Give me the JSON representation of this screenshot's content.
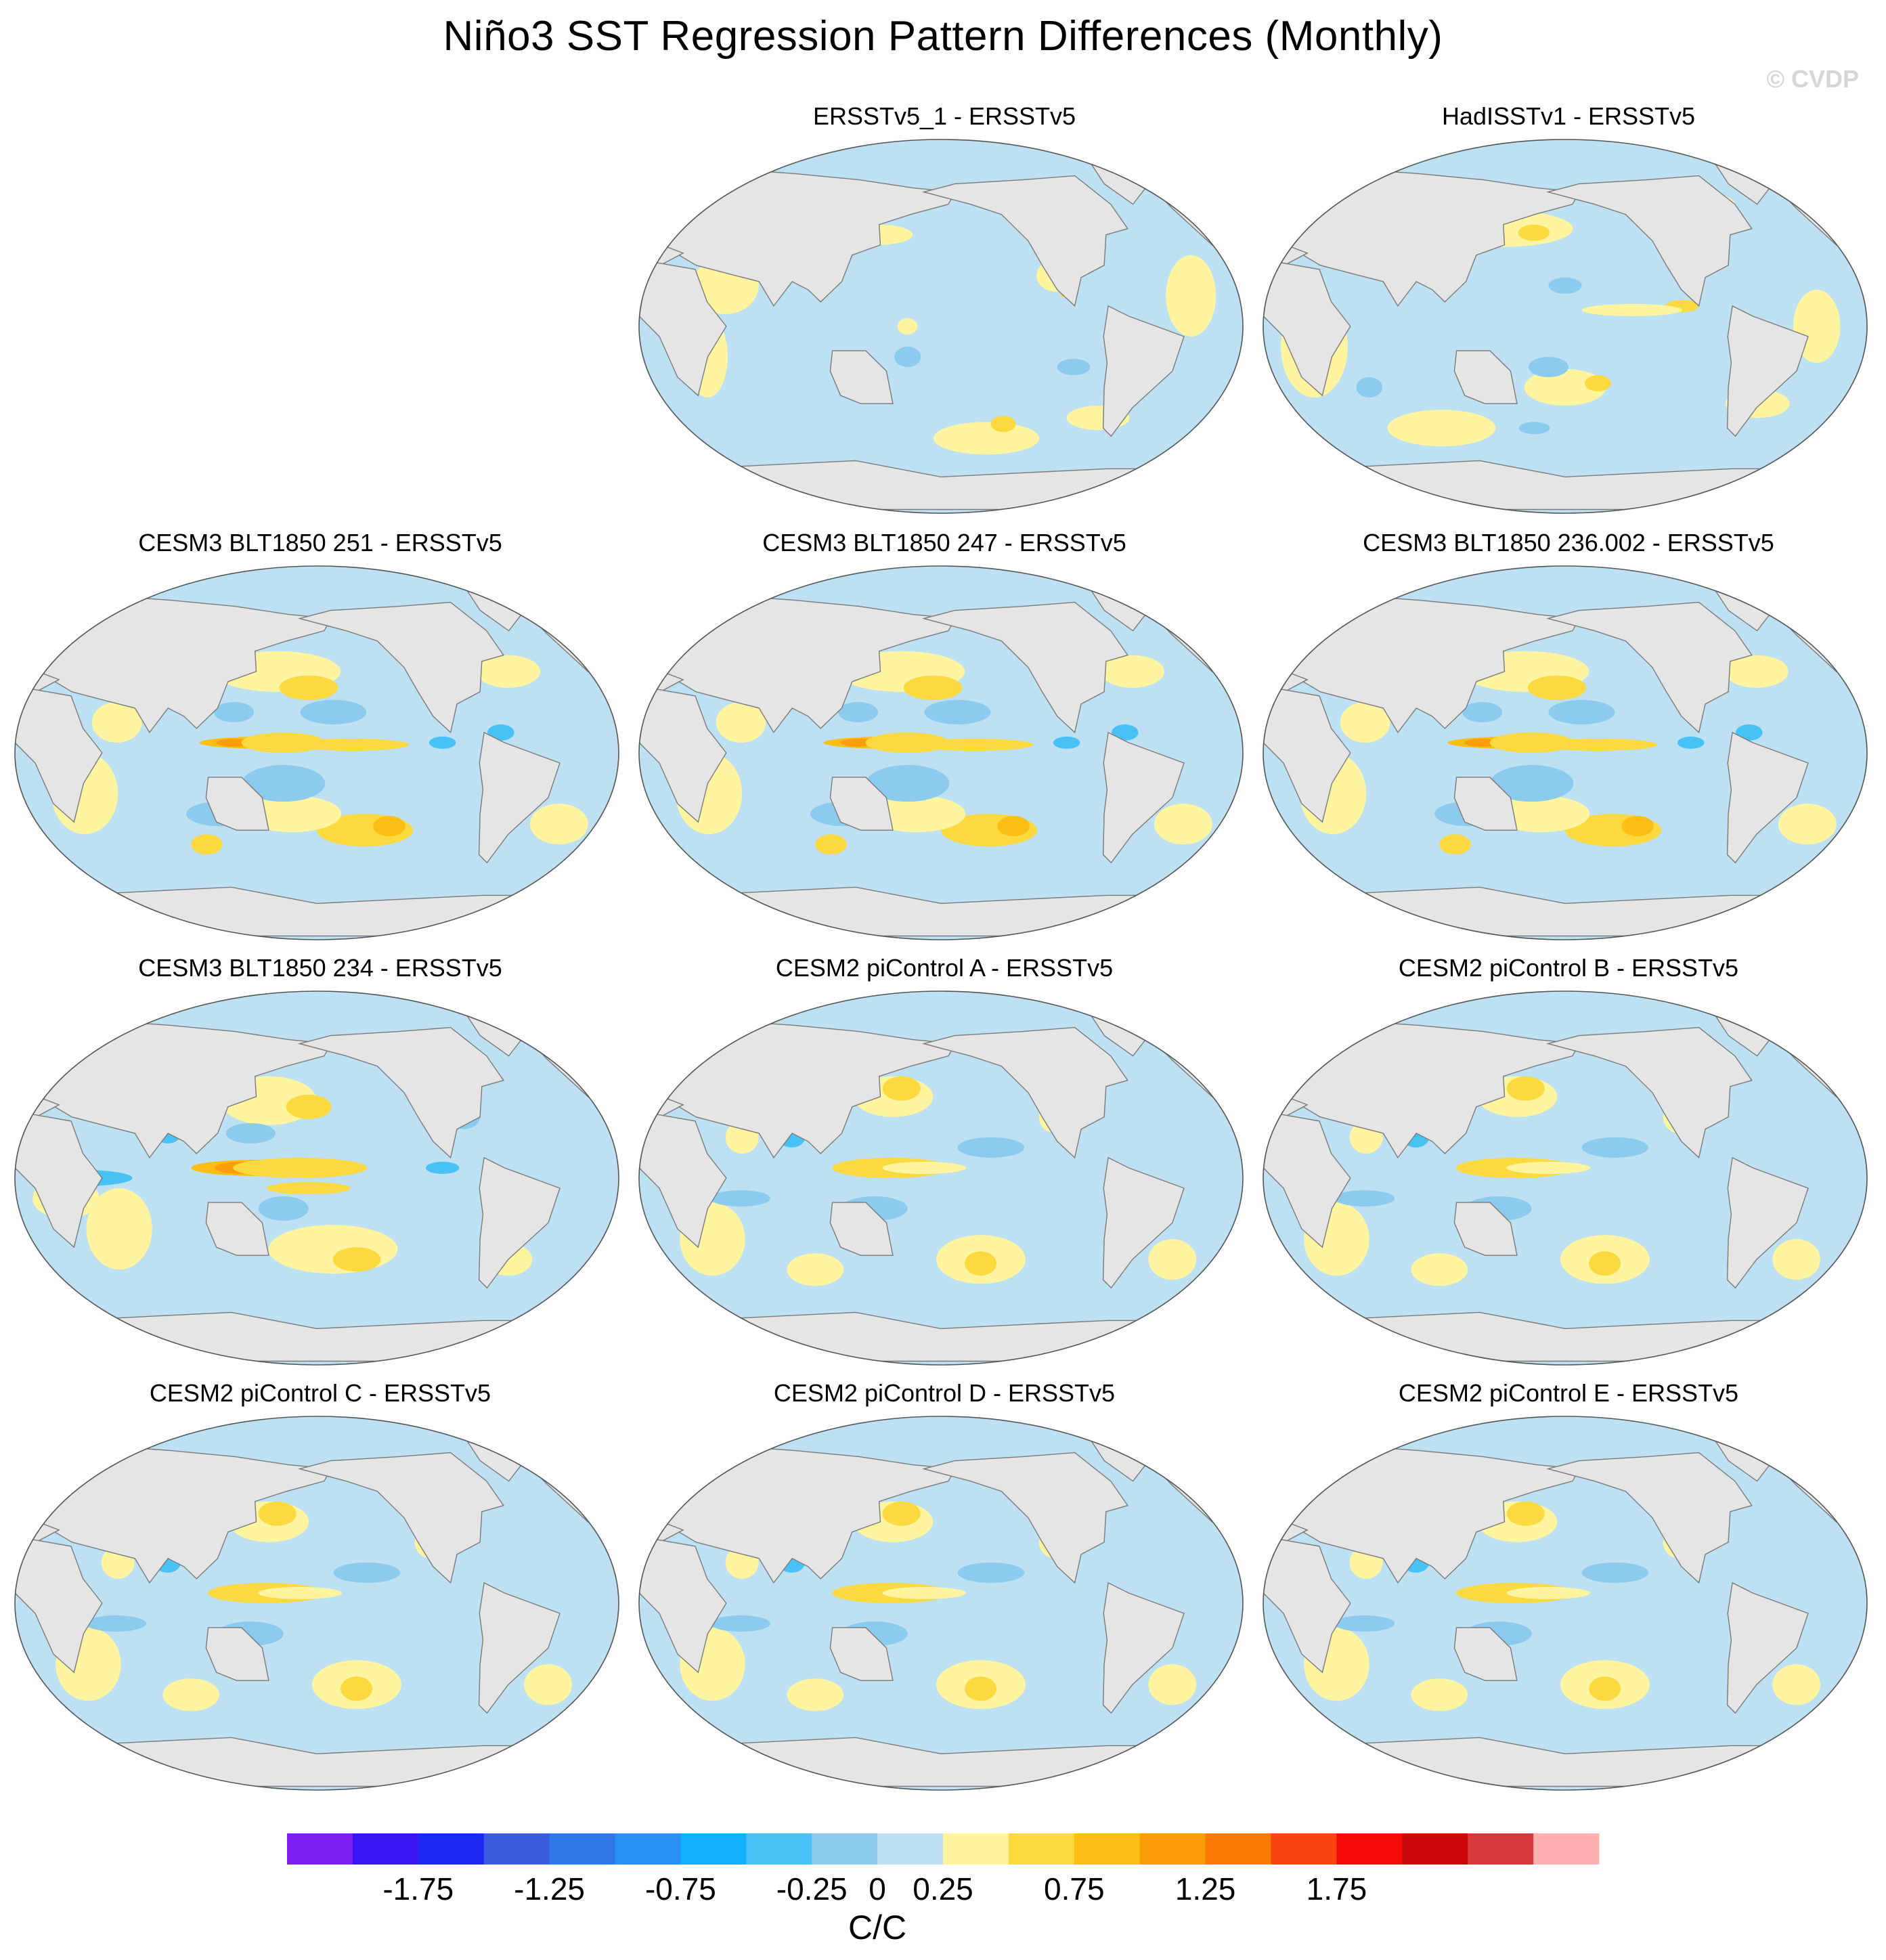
{
  "title": "Niño3 SST Regression Pattern Differences (Monthly)",
  "watermark": "© CVDP",
  "colors": {
    "land": "#e5e5e5",
    "coast": "#7a7a7a",
    "ocean_default": "#bde0f3"
  },
  "chart_data": {
    "type": "heatmap",
    "description_type": "global map panels (Robinson projection), filled contours",
    "panels": [
      {
        "title": "ERSSTv5_1 - ERSSTv5",
        "pattern": "obs_small"
      },
      {
        "title": "HadISSTv1 - ERSSTv5",
        "pattern": "obs_noisy"
      },
      {
        "title": "CESM3 BLT1850 251 - ERSSTv5",
        "pattern": "strong"
      },
      {
        "title": "CESM3 BLT1850 247 - ERSSTv5",
        "pattern": "strong"
      },
      {
        "title": "CESM3 BLT1850 236.002 - ERSSTv5",
        "pattern": "strong"
      },
      {
        "title": "CESM3 BLT1850 234 - ERSSTv5",
        "pattern": "strongest"
      },
      {
        "title": "CESM2 piControl A - ERSSTv5",
        "pattern": "moderate"
      },
      {
        "title": "CESM2 piControl B - ERSSTv5",
        "pattern": "moderate"
      },
      {
        "title": "CESM2 piControl C - ERSSTv5",
        "pattern": "moderate"
      },
      {
        "title": "CESM2 piControl D - ERSSTv5",
        "pattern": "moderate"
      },
      {
        "title": "CESM2 piControl E - ERSSTv5",
        "pattern": "moderate"
      }
    ],
    "colorbar": {
      "label": "C/C",
      "levels": [
        -2.0,
        -1.75,
        -1.5,
        -1.25,
        -1.0,
        -0.75,
        -0.5,
        -0.25,
        0,
        0.25,
        0.5,
        0.75,
        1.0,
        1.25,
        1.5,
        1.75,
        2.0
      ],
      "tick_labels": [
        "-1.75",
        "-1.25",
        "-0.75",
        "-0.25",
        "0",
        "0.25",
        "0.75",
        "1.25",
        "1.75"
      ],
      "tick_values": [
        -1.75,
        -1.25,
        -0.75,
        -0.25,
        0,
        0.25,
        0.75,
        1.25,
        1.75
      ],
      "colors": [
        "#7f1ef0",
        "#3a14f5",
        "#1a28f0",
        "#3c5ce0",
        "#2f78e8",
        "#2990f5",
        "#10b0fa",
        "#48c2f4",
        "#8ccaee",
        "#bde0f3",
        "#fff5a0",
        "#fcd93e",
        "#fbbf14",
        "#fb9e0a",
        "#fa7a05",
        "#fa4510",
        "#f50a0a",
        "#cc0808",
        "#d63a3a",
        "#ffb0b0"
      ]
    }
  }
}
